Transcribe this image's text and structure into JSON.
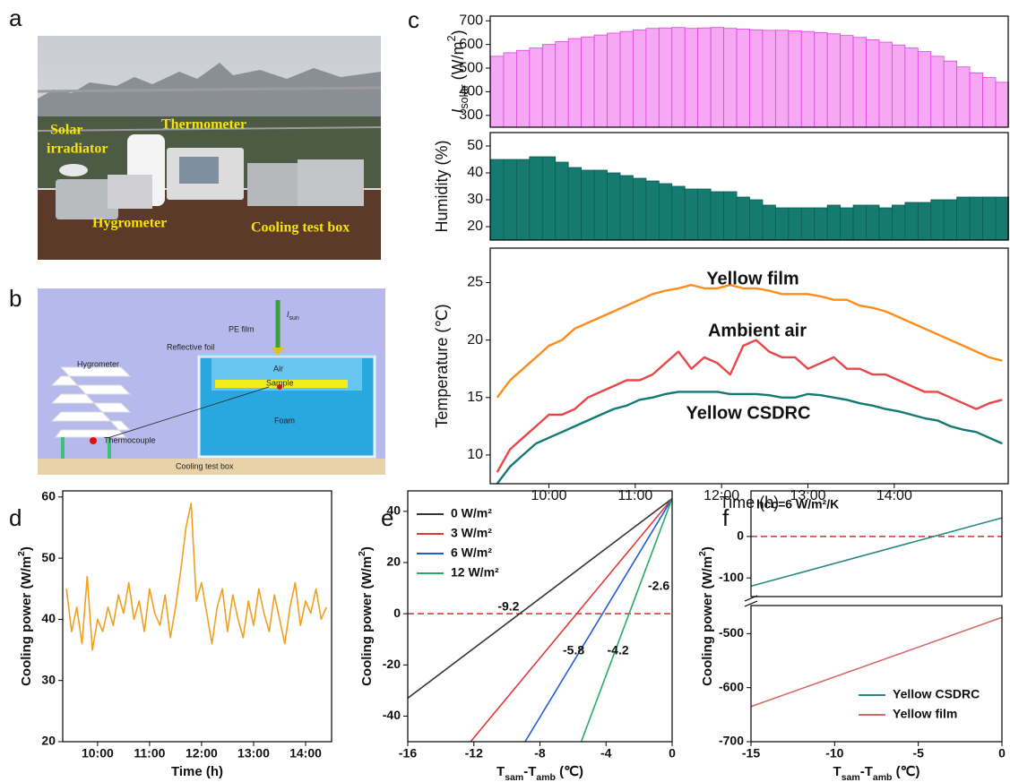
{
  "photo": {
    "label": "a",
    "labels": [
      "Solar",
      "irradiator",
      "Thermometer",
      "Hygrometer",
      "Cooling test box"
    ]
  },
  "diagram": {
    "label": "b",
    "labels": [
      "Hygrometer",
      "Reflective foil",
      "PE film",
      "Air",
      "Sample",
      "Foam",
      "Thermocouple",
      "Cooling test box"
    ],
    "sun": [
      "I",
      "sun"
    ]
  },
  "chart_data": [
    {
      "type": "bar",
      "label": "c",
      "ylabel_parts": [
        "I",
        "solar",
        " (W/m",
        "2",
        ")"
      ],
      "color": "#f7a8f5",
      "edgecolor": "#e040e0",
      "x": [
        9.4,
        9.55,
        9.7,
        9.85,
        10,
        10.15,
        10.3,
        10.45,
        10.6,
        10.75,
        10.9,
        11.05,
        11.2,
        11.35,
        11.5,
        11.65,
        11.8,
        11.95,
        12.1,
        12.25,
        12.4,
        12.55,
        12.7,
        12.85,
        13,
        13.15,
        13.3,
        13.45,
        13.6,
        13.75,
        13.9,
        14.05,
        14.2,
        14.35,
        14.5,
        14.65,
        14.8,
        14.95,
        15.1,
        15.25
      ],
      "values": [
        550,
        565,
        575,
        585,
        600,
        612,
        625,
        632,
        640,
        648,
        655,
        662,
        668,
        670,
        672,
        668,
        670,
        672,
        668,
        665,
        662,
        660,
        660,
        658,
        655,
        650,
        645,
        638,
        630,
        620,
        610,
        598,
        585,
        570,
        550,
        530,
        505,
        480,
        460,
        440
      ],
      "xlim": [
        9.32,
        15.32
      ],
      "ylim": [
        250,
        720
      ],
      "yticks": [
        300,
        400,
        500,
        600,
        700
      ]
    },
    {
      "type": "bar",
      "ylabel": "Humidity (%)",
      "color": "#157a70",
      "edgecolor": "#0e5c55",
      "x": [
        9.4,
        9.55,
        9.7,
        9.85,
        10,
        10.15,
        10.3,
        10.45,
        10.6,
        10.75,
        10.9,
        11.05,
        11.2,
        11.35,
        11.5,
        11.65,
        11.8,
        11.95,
        12.1,
        12.25,
        12.4,
        12.55,
        12.7,
        12.85,
        13,
        13.15,
        13.3,
        13.45,
        13.6,
        13.75,
        13.9,
        14.05,
        14.2,
        14.35,
        14.5,
        14.65,
        14.8,
        14.95,
        15.1,
        15.25
      ],
      "values": [
        45,
        45,
        45,
        46,
        46,
        44,
        42,
        41,
        41,
        40,
        39,
        38,
        37,
        36,
        35,
        34,
        34,
        33,
        33,
        31,
        30,
        28,
        27,
        27,
        27,
        27,
        28,
        27,
        28,
        28,
        27,
        28,
        29,
        29,
        30,
        30,
        31,
        31,
        31,
        31
      ],
      "xlim": [
        9.32,
        15.32
      ],
      "ylim": [
        15,
        55
      ],
      "yticks": [
        20,
        30,
        40,
        50
      ]
    },
    {
      "type": "line",
      "ylabel": "Temperature (℃)",
      "xlabel": "Time (h)",
      "x": [
        9.4,
        9.55,
        9.7,
        9.85,
        10,
        10.15,
        10.3,
        10.45,
        10.6,
        10.75,
        10.9,
        11.05,
        11.2,
        11.35,
        11.5,
        11.65,
        11.8,
        11.95,
        12.1,
        12.25,
        12.4,
        12.55,
        12.7,
        12.85,
        13,
        13.15,
        13.3,
        13.45,
        13.6,
        13.75,
        13.9,
        14.05,
        14.2,
        14.35,
        14.5,
        14.65,
        14.8,
        14.95,
        15.1,
        15.25
      ],
      "series": [
        {
          "name": "Yellow film",
          "color": "#ff8c1a",
          "values": [
            15,
            16.5,
            17.5,
            18.5,
            19.5,
            20,
            21,
            21.5,
            22,
            22.5,
            23,
            23.5,
            24,
            24.3,
            24.5,
            24.8,
            24.5,
            24.5,
            24.8,
            24.5,
            24.5,
            24.3,
            24,
            24,
            24,
            23.8,
            23.5,
            23.5,
            23,
            22.8,
            22.5,
            22,
            21.5,
            21,
            20.5,
            20,
            19.5,
            19,
            18.5,
            18.2
          ]
        },
        {
          "name": "Ambient air",
          "color": "#e8474a",
          "values": [
            8.5,
            10.5,
            11.5,
            12.5,
            13.5,
            13.5,
            14,
            15,
            15.5,
            16,
            16.5,
            16.5,
            17,
            18,
            19,
            17.5,
            18.5,
            18,
            17,
            19.5,
            20,
            19,
            18.5,
            18.5,
            17.5,
            18,
            18.5,
            17.5,
            17.5,
            17,
            17,
            16.5,
            16,
            15.5,
            15.5,
            15,
            14.5,
            14,
            14.5,
            14.8
          ]
        },
        {
          "name": "Yellow CSDRC",
          "color": "#127a72",
          "values": [
            7.5,
            9,
            10,
            11,
            11.5,
            12,
            12.5,
            13,
            13.5,
            14,
            14.3,
            14.8,
            15,
            15.3,
            15.5,
            15.5,
            15.5,
            15.5,
            15.3,
            15.3,
            15.3,
            15.2,
            15,
            15,
            15.3,
            15.2,
            15,
            14.8,
            14.5,
            14.3,
            14,
            13.8,
            13.5,
            13.2,
            13,
            12.5,
            12.2,
            12,
            11.5,
            11
          ]
        }
      ],
      "xlim": [
        9.32,
        15.32
      ],
      "ylim": [
        7.5,
        28
      ],
      "yticks": [
        10,
        15,
        20,
        25
      ],
      "xticks": [
        {
          "value": 10,
          "label": "10:00"
        },
        {
          "value": 11,
          "label": "11:00"
        },
        {
          "value": 12,
          "label": "12:00"
        },
        {
          "value": 13,
          "label": "13:00"
        },
        {
          "value": 14,
          "label": "14:00"
        }
      ]
    },
    {
      "type": "line",
      "label": "d",
      "xlabel": "Time (h)",
      "ylabel_parts": [
        "Cooling power (W/m",
        "2",
        ")"
      ],
      "x": [
        9.4,
        9.5,
        9.6,
        9.7,
        9.8,
        9.9,
        10,
        10.1,
        10.2,
        10.3,
        10.4,
        10.5,
        10.6,
        10.7,
        10.8,
        10.9,
        11,
        11.1,
        11.2,
        11.3,
        11.4,
        11.5,
        11.6,
        11.7,
        11.8,
        11.9,
        12,
        12.1,
        12.2,
        12.3,
        12.4,
        12.5,
        12.6,
        12.7,
        12.8,
        12.9,
        13,
        13.1,
        13.2,
        13.3,
        13.4,
        13.5,
        13.6,
        13.7,
        13.8,
        13.9,
        14,
        14.1,
        14.2,
        14.3,
        14.4
      ],
      "series": [
        {
          "color": "#f0a020",
          "values": [
            45,
            38,
            42,
            36,
            47,
            35,
            40,
            38,
            42,
            39,
            44,
            41,
            46,
            40,
            43,
            38,
            45,
            41,
            39,
            44,
            37,
            42,
            48,
            55,
            59,
            43,
            46,
            41,
            36,
            42,
            45,
            38,
            44,
            40,
            37,
            43,
            39,
            45,
            41,
            38,
            44,
            40,
            36,
            42,
            46,
            39,
            43,
            41,
            45,
            40,
            42
          ]
        }
      ],
      "xlim": [
        9.33,
        14.5
      ],
      "ylim": [
        20,
        61
      ],
      "yticks": [
        20,
        30,
        40,
        50,
        60
      ],
      "xticks": [
        {
          "value": 10,
          "label": "10:00"
        },
        {
          "value": 11,
          "label": "11:00"
        },
        {
          "value": 12,
          "label": "12:00"
        },
        {
          "value": 13,
          "label": "13:00"
        },
        {
          "value": 14,
          "label": "14:00"
        }
      ]
    },
    {
      "type": "line",
      "label": "e",
      "xlabel_parts": [
        "T",
        "sam",
        "-T",
        "amb",
        " (℃)"
      ],
      "ylabel_parts": [
        "Cooling power (W/m",
        "2",
        ")"
      ],
      "series": [
        {
          "name": "0 W/m²",
          "color": "#333333",
          "x": [
            -16,
            0
          ],
          "values": [
            -33,
            45
          ],
          "crossing": -9.2
        },
        {
          "name": "3 W/m²",
          "color": "#e03a3a",
          "x": [
            -12.2,
            0
          ],
          "values": [
            -50,
            45
          ],
          "crossing": -5.8
        },
        {
          "name": "6 W/m²",
          "color": "#1f5fd6",
          "x": [
            -8.9,
            0
          ],
          "values": [
            -50,
            45
          ],
          "crossing": -4.2
        },
        {
          "name": "12 W/m²",
          "color": "#2aa86a",
          "x": [
            -5.5,
            0
          ],
          "values": [
            -50,
            45
          ],
          "crossing": -2.6
        }
      ],
      "hline": 0,
      "hline_color": "#d03030",
      "xlim": [
        -16,
        0
      ],
      "ylim": [
        -50,
        48
      ],
      "yticks": [
        -40,
        -20,
        0,
        20,
        40
      ],
      "xticks": [
        -16,
        -12,
        -8,
        -4,
        0
      ],
      "legend": "upper left"
    },
    {
      "type": "line",
      "label": "f",
      "annotation": "hcc=6 W/m²/K",
      "xlabel_parts": [
        "T",
        "sam",
        "-T",
        "amb",
        " (℃)"
      ],
      "ylabel_parts": [
        "Cooling power (W/m",
        "2",
        ")"
      ],
      "segments": [
        {
          "ylim": [
            -145,
            110
          ],
          "yticks": [
            -100,
            0
          ]
        },
        {
          "ylim": [
            -700,
            -448
          ],
          "yticks": [
            -700,
            -600,
            -500
          ]
        }
      ],
      "series": [
        {
          "name": "Yellow CSDRC",
          "color": "#2a8a80",
          "x": [
            -15,
            0
          ],
          "values": [
            -120,
            45
          ],
          "segment": 0
        },
        {
          "name": "Yellow film",
          "color": "#d46a6a",
          "x": [
            -15,
            0
          ],
          "values": [
            -635,
            -470
          ],
          "segment": 1
        }
      ],
      "hline": 0,
      "hline_color": "#d03030",
      "xlim": [
        -15,
        0
      ],
      "xticks": [
        -15,
        -10,
        -5,
        0
      ],
      "legend": "lower right"
    }
  ]
}
